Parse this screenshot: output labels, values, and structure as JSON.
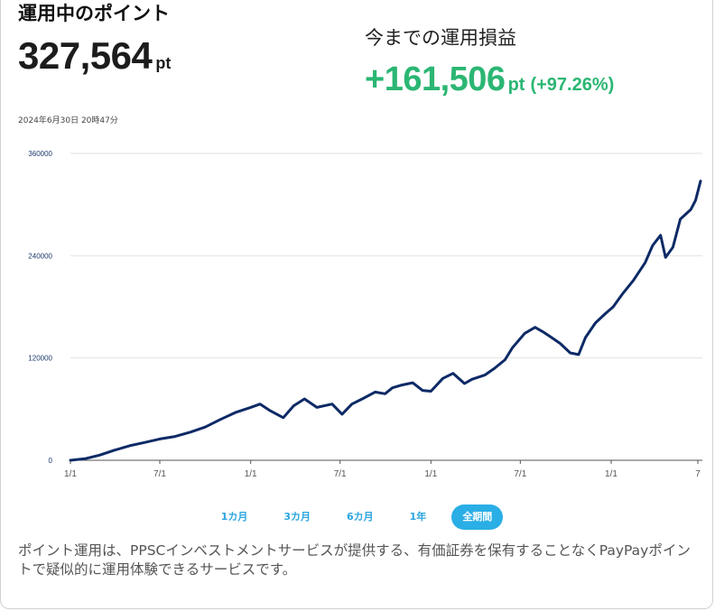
{
  "header": {
    "points_label": "運用中のポイント",
    "points_value": "327,564",
    "points_unit": "pt",
    "pl_label": "今までの運用損益",
    "pl_value": "+161,506",
    "pl_unit": "pt",
    "pl_percent": "(+97.26%)",
    "timestamp": "2024年6月30日 20時47分"
  },
  "colors": {
    "line": "#0d2a66",
    "gain": "#2bb673",
    "tab_active": "#2aaee6",
    "tab_text": "#2aa5de"
  },
  "tabs": [
    {
      "label": "1カ月",
      "active": false
    },
    {
      "label": "3カ月",
      "active": false
    },
    {
      "label": "6カ月",
      "active": false
    },
    {
      "label": "1年",
      "active": false
    },
    {
      "label": "全期間",
      "active": true
    }
  ],
  "description": "ポイント運用は、PPSCインベストメントサービスが提供する、有価証券を保有することなくPayPayポイントで疑似的に運用体験できるサービスです。",
  "chart_data": {
    "type": "line",
    "ylim": [
      0,
      360000
    ],
    "ytick_labels": [
      "0",
      "120000",
      "240000",
      "360000"
    ],
    "ytick_values": [
      0,
      120000,
      240000,
      360000
    ],
    "xtick_labels": [
      "1/1",
      "7/1",
      "1/1",
      "7/1",
      "1/1",
      "7/1",
      "1/1",
      "7"
    ],
    "x_range": [
      "2021-01-01",
      "2024-06-30"
    ],
    "xtick_dates": [
      "2021-01-01",
      "2021-07-01",
      "2022-01-01",
      "2022-07-01",
      "2023-01-01",
      "2023-07-01",
      "2024-01-01",
      "2024-07-01"
    ],
    "grid": true,
    "series": [
      {
        "x": [
          "2021-01-01",
          "2021-02-01",
          "2021-03-01",
          "2021-04-01",
          "2021-05-01",
          "2021-06-01",
          "2021-07-01",
          "2021-08-01",
          "2021-09-01",
          "2021-10-01",
          "2021-11-01",
          "2021-12-01",
          "2022-01-01",
          "2022-01-20",
          "2022-02-10",
          "2022-03-08",
          "2022-03-29",
          "2022-04-20",
          "2022-05-15",
          "2022-06-15",
          "2022-07-05",
          "2022-07-25",
          "2022-08-15",
          "2022-09-10",
          "2022-09-30",
          "2022-10-15",
          "2022-11-01",
          "2022-11-25",
          "2022-12-15",
          "2023-01-01",
          "2023-01-25",
          "2023-02-15",
          "2023-03-10",
          "2023-03-25",
          "2023-04-20",
          "2023-05-10",
          "2023-05-31",
          "2023-06-15",
          "2023-07-10",
          "2023-07-31",
          "2023-08-15",
          "2023-08-31",
          "2023-09-20",
          "2023-10-10",
          "2023-10-27",
          "2023-11-10",
          "2023-11-30",
          "2023-12-20",
          "2024-01-05",
          "2024-01-25",
          "2024-02-15",
          "2024-03-10",
          "2024-03-25",
          "2024-04-10",
          "2024-04-20",
          "2024-05-05",
          "2024-05-20",
          "2024-06-10",
          "2024-06-20",
          "2024-06-30"
        ],
        "values": [
          0,
          2000,
          6000,
          12000,
          17000,
          21000,
          25000,
          28000,
          33000,
          39000,
          48000,
          56000,
          62000,
          66000,
          58000,
          50000,
          64000,
          72000,
          62000,
          66000,
          54000,
          66000,
          72000,
          80000,
          78000,
          85000,
          88000,
          91000,
          82000,
          81000,
          96000,
          102000,
          90000,
          95000,
          100000,
          108000,
          118000,
          132000,
          149000,
          156000,
          151000,
          145000,
          137000,
          126000,
          124000,
          144000,
          161000,
          172000,
          180000,
          196000,
          211000,
          232000,
          252000,
          264000,
          238000,
          250000,
          283000,
          294000,
          305000,
          327564
        ]
      }
    ]
  }
}
